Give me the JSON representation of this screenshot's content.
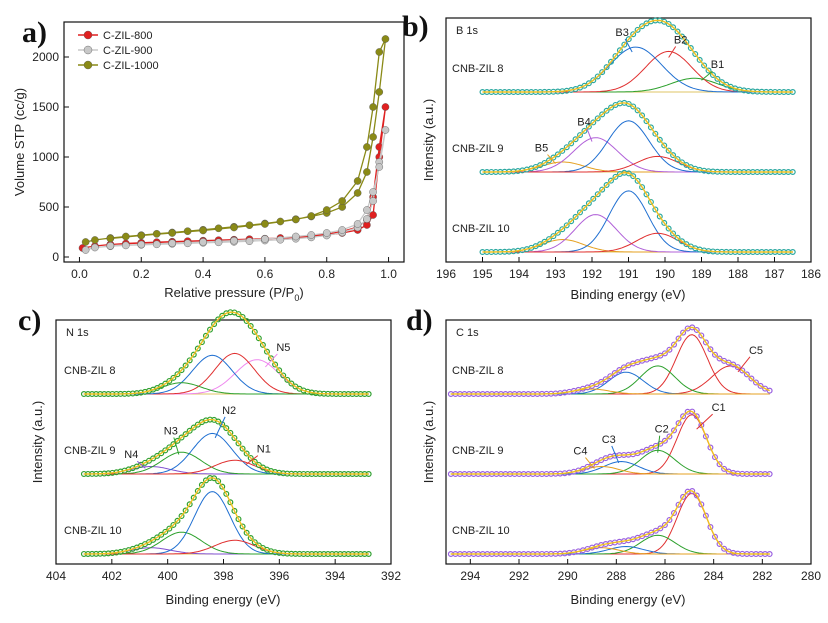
{
  "chart_data": [
    {
      "type": "line",
      "panel": "a)",
      "xlabel": "Relative pressure  (P/P",
      "xlabel_sub": "0",
      "xlabel_close": ")",
      "ylabel": "Volume STP  (cc/g)",
      "xlim": [
        -0.05,
        1.05
      ],
      "ylim": [
        -50,
        2350
      ],
      "xticks": [
        "0.0",
        "0.2",
        "0.4",
        "0.6",
        "0.8",
        "1.0"
      ],
      "yticks": [
        "0",
        "500",
        "1000",
        "1500",
        "2000"
      ],
      "legend_position": "top-left",
      "series": [
        {
          "name": "C-ZIL-800",
          "color": "#e02020",
          "x": [
            0.01,
            0.05,
            0.1,
            0.15,
            0.2,
            0.25,
            0.3,
            0.35,
            0.4,
            0.45,
            0.5,
            0.55,
            0.6,
            0.65,
            0.7,
            0.75,
            0.8,
            0.85,
            0.9,
            0.93,
            0.95,
            0.97,
            0.99,
            0.97,
            0.95,
            0.93,
            0.9,
            0.85,
            0.8,
            0.75,
            0.7,
            0.6,
            0.5,
            0.4,
            0.3,
            0.2,
            0.1
          ],
          "y": [
            90,
            110,
            125,
            135,
            142,
            148,
            153,
            158,
            163,
            168,
            173,
            178,
            183,
            190,
            200,
            212,
            228,
            255,
            300,
            370,
            600,
            1100,
            1500,
            1000,
            420,
            320,
            270,
            240,
            220,
            205,
            195,
            182,
            170,
            160,
            150,
            140,
            125
          ]
        },
        {
          "name": "C-ZIL-900",
          "color": "#c8c8c8",
          "x": [
            0.02,
            0.05,
            0.1,
            0.15,
            0.2,
            0.25,
            0.3,
            0.35,
            0.4,
            0.45,
            0.5,
            0.55,
            0.6,
            0.65,
            0.7,
            0.75,
            0.8,
            0.85,
            0.9,
            0.93,
            0.95,
            0.97,
            0.99,
            0.97,
            0.95,
            0.93,
            0.9,
            0.85,
            0.8,
            0.75,
            0.7,
            0.6,
            0.5,
            0.4,
            0.3,
            0.2,
            0.1
          ],
          "y": [
            70,
            95,
            108,
            116,
            122,
            127,
            132,
            137,
            142,
            147,
            152,
            158,
            165,
            173,
            183,
            196,
            215,
            245,
            295,
            380,
            560,
            950,
            1270,
            900,
            650,
            470,
            330,
            270,
            240,
            220,
            205,
            180,
            163,
            150,
            138,
            125,
            112
          ]
        },
        {
          "name": "C-ZIL-1000",
          "color": "#8a8a16",
          "x": [
            0.02,
            0.05,
            0.1,
            0.15,
            0.2,
            0.25,
            0.3,
            0.35,
            0.4,
            0.45,
            0.5,
            0.55,
            0.6,
            0.65,
            0.7,
            0.75,
            0.8,
            0.85,
            0.9,
            0.93,
            0.95,
            0.97,
            0.99,
            0.97,
            0.95,
            0.93,
            0.9,
            0.85,
            0.8,
            0.75,
            0.7,
            0.6,
            0.5,
            0.4,
            0.3,
            0.2,
            0.1
          ],
          "y": [
            150,
            170,
            190,
            205,
            218,
            232,
            245,
            258,
            272,
            287,
            302,
            318,
            335,
            355,
            378,
            405,
            440,
            500,
            640,
            850,
            1200,
            1650,
            2180,
            2050,
            1500,
            1100,
            760,
            560,
            470,
            410,
            375,
            330,
            295,
            265,
            240,
            215,
            185
          ]
        }
      ]
    },
    {
      "type": "line",
      "panel": "b)",
      "core_level": "B 1s",
      "xlabel": "Binding energy (eV)",
      "ylabel": "Intensity (a.u.)",
      "xlim": [
        196,
        186
      ],
      "xticks": [
        "196",
        "195",
        "194",
        "193",
        "192",
        "191",
        "190",
        "189",
        "188",
        "187",
        "186"
      ],
      "spectra": [
        {
          "name": "CNB-ZIL 8",
          "offset": 2.0,
          "range": [
            195,
            186.5
          ],
          "peaks": [
            {
              "label": "B1",
              "color": "#2ca02c",
              "center": 189.2,
              "height": 0.22,
              "width": 0.9
            },
            {
              "label": "B2",
              "color": "#e03030",
              "center": 189.9,
              "height": 0.65,
              "width": 0.9
            },
            {
              "label": "B3",
              "color": "#1f6fd1",
              "center": 190.8,
              "height": 0.72,
              "width": 1.0
            }
          ]
        },
        {
          "name": "CNB-ZIL 9",
          "offset": 1.0,
          "range": [
            195,
            186.5
          ],
          "peaks": [
            {
              "label": "B5",
              "color": "#e5a020",
              "center": 192.8,
              "height": 0.16,
              "width": 0.8
            },
            {
              "label": "B4",
              "color": "#b060d8",
              "center": 191.9,
              "height": 0.55,
              "width": 0.85
            },
            {
              "label": "",
              "color": "#1f6fd1",
              "center": 191.0,
              "height": 0.82,
              "width": 0.8
            },
            {
              "label": "",
              "color": "#e03030",
              "center": 190.2,
              "height": 0.25,
              "width": 0.8
            }
          ]
        },
        {
          "name": "CNB-ZIL 10",
          "offset": 0.0,
          "range": [
            195,
            186.5
          ],
          "peaks": [
            {
              "label": "",
              "color": "#e5a020",
              "center": 192.8,
              "height": 0.2,
              "width": 0.8
            },
            {
              "label": "",
              "color": "#b060d8",
              "center": 191.9,
              "height": 0.6,
              "width": 0.8
            },
            {
              "label": "",
              "color": "#1f6fd1",
              "center": 191.0,
              "height": 0.98,
              "width": 0.75
            },
            {
              "label": "",
              "color": "#e03030",
              "center": 190.2,
              "height": 0.3,
              "width": 0.8
            }
          ]
        }
      ],
      "fit_color": "#f0c020",
      "data_color": "#2aa8a0"
    },
    {
      "type": "line",
      "panel": "c)",
      "core_level": "N 1s",
      "xlabel": "Binding energy (eV)",
      "ylabel": "Intensity (a.u.)",
      "xlim": [
        404,
        392
      ],
      "xticks": [
        "404",
        "402",
        "400",
        "398",
        "396",
        "394",
        "392"
      ],
      "spectra": [
        {
          "name": "CNB-ZIL 8",
          "offset": 2.0,
          "range": [
            403,
            392.8
          ],
          "peaks": [
            {
              "label": "N5",
              "color": "#ee88ee",
              "center": 396.8,
              "height": 0.55,
              "width": 1.1
            },
            {
              "label": "",
              "color": "#e03030",
              "center": 397.6,
              "height": 0.65,
              "width": 1.0
            },
            {
              "label": "",
              "color": "#1f6fd1",
              "center": 398.4,
              "height": 0.62,
              "width": 1.0
            },
            {
              "label": "",
              "color": "#2ca02c",
              "center": 399.5,
              "height": 0.18,
              "width": 1.0
            }
          ]
        },
        {
          "name": "CNB-ZIL 9",
          "offset": 1.0,
          "range": [
            403,
            392.8
          ],
          "peaks": [
            {
              "label": "N4",
              "color": "#8050d0",
              "center": 400.6,
              "height": 0.12,
              "width": 1.0
            },
            {
              "label": "N3",
              "color": "#2ca02c",
              "center": 399.5,
              "height": 0.35,
              "width": 1.0
            },
            {
              "label": "N2",
              "color": "#1f6fd1",
              "center": 398.4,
              "height": 0.65,
              "width": 1.0
            },
            {
              "label": "N1",
              "color": "#e03030",
              "center": 397.6,
              "height": 0.22,
              "width": 1.0
            }
          ]
        },
        {
          "name": "CNB-ZIL 10",
          "offset": 0.0,
          "range": [
            403,
            392.8
          ],
          "peaks": [
            {
              "label": "",
              "color": "#8050d0",
              "center": 400.6,
              "height": 0.1,
              "width": 1.0
            },
            {
              "label": "",
              "color": "#2ca02c",
              "center": 399.5,
              "height": 0.35,
              "width": 1.0
            },
            {
              "label": "",
              "color": "#1f6fd1",
              "center": 398.4,
              "height": 1.0,
              "width": 0.9
            },
            {
              "label": "",
              "color": "#e03030",
              "center": 397.6,
              "height": 0.22,
              "width": 1.0
            }
          ]
        }
      ],
      "fit_color": "#f0c020",
      "data_color": "#30a030"
    },
    {
      "type": "line",
      "panel": "d)",
      "core_level": "C 1s",
      "xlabel": "Binding energy (eV)",
      "ylabel": "Intensity (a.u.)",
      "xlim": [
        295,
        280
      ],
      "xticks": [
        "294",
        "292",
        "290",
        "288",
        "286",
        "284",
        "282",
        "280"
      ],
      "spectra": [
        {
          "name": "CNB-ZIL 8",
          "offset": 2.0,
          "range": [
            294.8,
            281.7
          ],
          "peaks": [
            {
              "label": "C5",
              "color": "#e03030",
              "center": 283.3,
              "height": 0.45,
              "width": 1.1
            },
            {
              "label": "",
              "color": "#e03030",
              "center": 284.9,
              "height": 0.95,
              "width": 0.9
            },
            {
              "label": "",
              "color": "#2ca02c",
              "center": 286.3,
              "height": 0.45,
              "width": 1.0
            },
            {
              "label": "",
              "color": "#1f6fd1",
              "center": 287.6,
              "height": 0.35,
              "width": 1.0
            },
            {
              "label": "",
              "color": "#e5a020",
              "center": 289.0,
              "height": 0.08,
              "width": 1.0
            }
          ]
        },
        {
          "name": "CNB-ZIL 9",
          "offset": 1.0,
          "range": [
            294.8,
            281.7
          ],
          "peaks": [
            {
              "label": "C1",
              "color": "#e03030",
              "center": 284.9,
              "height": 0.95,
              "width": 0.85
            },
            {
              "label": "C2",
              "color": "#2ca02c",
              "center": 286.3,
              "height": 0.38,
              "width": 1.0
            },
            {
              "label": "C3",
              "color": "#1f6fd1",
              "center": 287.8,
              "height": 0.2,
              "width": 1.0
            },
            {
              "label": "C4",
              "color": "#e5a020",
              "center": 288.6,
              "height": 0.12,
              "width": 1.0
            }
          ]
        },
        {
          "name": "CNB-ZIL 10",
          "offset": 0.0,
          "range": [
            294.8,
            281.7
          ],
          "peaks": [
            {
              "label": "",
              "color": "#e03030",
              "center": 284.9,
              "height": 0.97,
              "width": 0.85
            },
            {
              "label": "",
              "color": "#2ca02c",
              "center": 286.3,
              "height": 0.3,
              "width": 1.0
            },
            {
              "label": "",
              "color": "#1f6fd1",
              "center": 287.6,
              "height": 0.12,
              "width": 1.0
            },
            {
              "label": "",
              "color": "#e5a020",
              "center": 288.6,
              "height": 0.1,
              "width": 1.0
            }
          ]
        }
      ],
      "fit_color": "#f0c020",
      "data_color": "#9a60e0"
    }
  ]
}
